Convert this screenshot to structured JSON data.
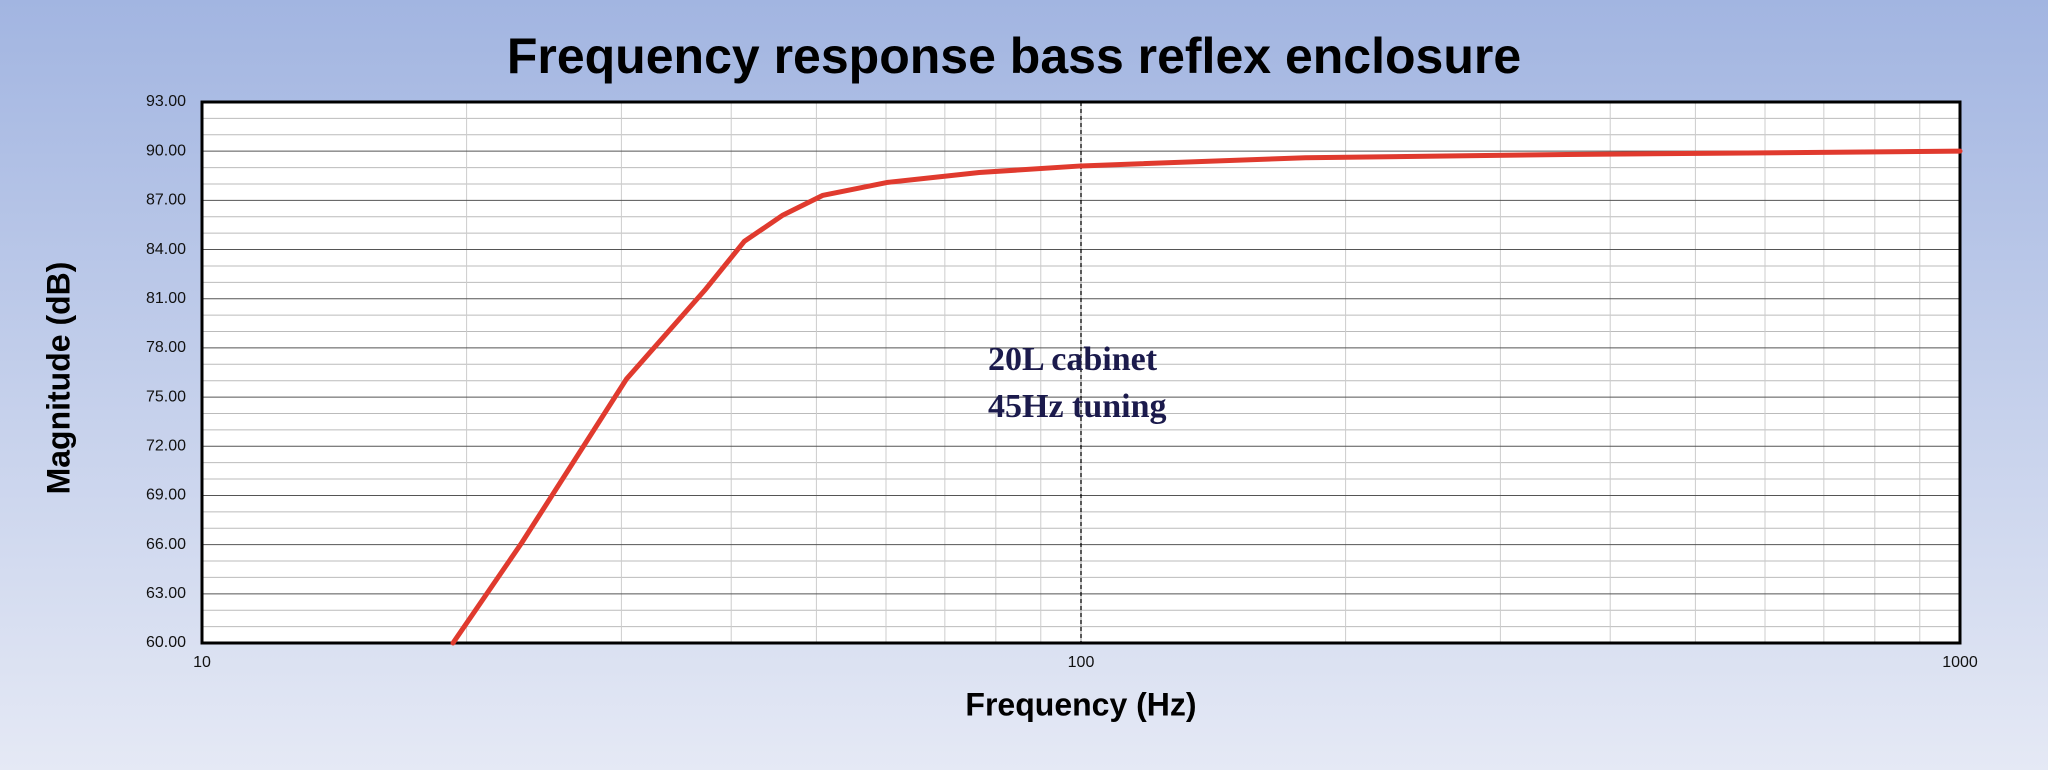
{
  "chart_data": {
    "type": "line",
    "title": "Frequency response bass reflex enclosure",
    "xlabel": "Frequency (Hz)",
    "ylabel": "Magnitude (dB)",
    "x": [
      19.3,
      23.1,
      30.4,
      37.3,
      41.4,
      45.8,
      50.8,
      60.3,
      76.6,
      100,
      180,
      357,
      1000
    ],
    "series": [
      {
        "color": "#e03a2e",
        "values": [
          60.0,
          66.1,
          76.1,
          81.5,
          84.5,
          86.1,
          87.3,
          88.1,
          88.7,
          89.1,
          89.6,
          89.8,
          90.0
        ]
      }
    ],
    "xscale": "log",
    "xlim": [
      10,
      1000
    ],
    "xticks": [
      10,
      100,
      1000
    ],
    "ylim": [
      60,
      93
    ],
    "yticks": [
      {
        "value": 60,
        "label": "60.00"
      },
      {
        "value": 63,
        "label": "63.00"
      },
      {
        "value": 66,
        "label": "66.00"
      },
      {
        "value": 69,
        "label": "69.00"
      },
      {
        "value": 72,
        "label": "72.00"
      },
      {
        "value": 75,
        "label": "75.00"
      },
      {
        "value": 78,
        "label": "78.00"
      },
      {
        "value": 81,
        "label": "81.00"
      },
      {
        "value": 84,
        "label": "84.00"
      },
      {
        "value": 87,
        "label": "87.00"
      },
      {
        "value": 90,
        "label": "90.00"
      },
      {
        "value": 93,
        "label": "93.00"
      }
    ],
    "grid": true,
    "reference_line_x": 100,
    "annotation": [
      "20L cabinet",
      "45Hz tuning"
    ]
  }
}
